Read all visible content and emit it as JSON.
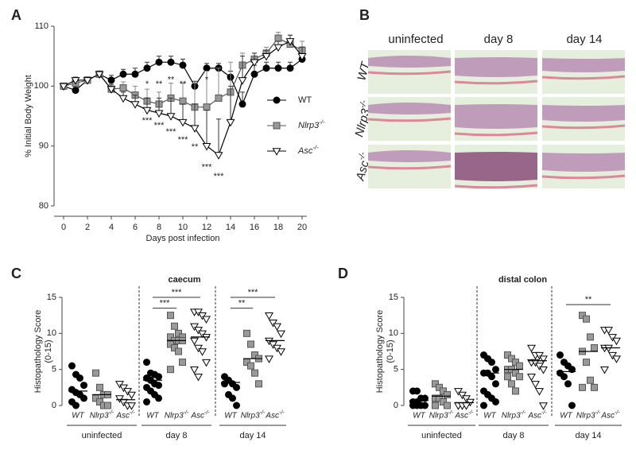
{
  "panel_labels": [
    "A",
    "B",
    "C",
    "D"
  ],
  "histology": {
    "columns": [
      "uninfected",
      "day 8",
      "day 14"
    ],
    "rows": [
      "WT",
      "Nlrp3-/-",
      "Asc-/-"
    ]
  },
  "chart_data": [
    {
      "type": "line",
      "xlabel": "Days post infection",
      "ylabel": "% Initial Body Weight",
      "x": [
        0,
        1,
        2,
        3,
        4,
        5,
        6,
        7,
        8,
        9,
        10,
        11,
        12,
        13,
        14,
        15,
        16,
        17,
        18,
        19,
        20
      ],
      "xlim": [
        0,
        20
      ],
      "ylim": [
        80,
        110
      ],
      "xticks": [
        0,
        2,
        4,
        6,
        8,
        10,
        12,
        14,
        16,
        18,
        20
      ],
      "yticks": [
        80,
        90,
        100,
        110
      ],
      "legend": "right",
      "series": [
        {
          "name": "WT",
          "marker": "circle",
          "color": "#000000",
          "edge_color": "#000000",
          "values": [
            100,
            99.3,
            101,
            102,
            101,
            102,
            102,
            103,
            104,
            104,
            103.5,
            100,
            103,
            103,
            101.5,
            97,
            102,
            103,
            103,
            103,
            104.5
          ],
          "errors": [
            0,
            0.5,
            0.5,
            0.5,
            0.8,
            0.8,
            1,
            1,
            1,
            1,
            1,
            0.8,
            0.8,
            0.8,
            1,
            2,
            1.5,
            1,
            1,
            1,
            1.2
          ]
        },
        {
          "name": "Nlrp3-/-",
          "marker": "square",
          "color": "#999999",
          "edge_color": "#555555",
          "values": [
            100,
            100.5,
            101,
            102,
            99.5,
            99.7,
            98.5,
            97.5,
            97,
            98,
            97.5,
            96.5,
            96.5,
            98,
            99,
            103.5,
            104.5,
            105.5,
            108,
            107,
            106
          ],
          "errors": [
            0,
            0.5,
            0.5,
            0.5,
            0.8,
            1,
            1.5,
            2,
            2,
            2.5,
            3,
            4,
            6,
            5,
            5,
            2,
            1,
            1,
            1,
            1.5,
            1.5
          ]
        },
        {
          "name": "Asc-/-",
          "marker": "triangle-down",
          "color": "#ffffff",
          "edge_color": "#000000",
          "values": [
            100,
            101,
            101,
            102,
            99.5,
            98,
            97,
            96,
            95.5,
            95,
            94,
            93,
            90,
            88.5,
            94,
            101,
            104,
            105,
            106.5,
            107.5,
            105
          ],
          "errors": [
            0,
            0.5,
            0.5,
            0.5,
            0.8,
            1,
            1.5,
            2,
            2.5,
            3,
            3,
            4,
            6,
            6,
            6,
            4,
            1.5,
            1,
            1,
            1,
            1.5
          ]
        }
      ],
      "annotations": [
        {
          "x": 7,
          "y": 100.3,
          "text": "*",
          "color": "#999999"
        },
        {
          "x": 8,
          "y": 100.3,
          "text": "**",
          "color": "#999999"
        },
        {
          "x": 9,
          "y": 101,
          "text": "**",
          "color": "#999999"
        },
        {
          "x": 10,
          "y": 100.3,
          "text": "**",
          "color": "#999999"
        },
        {
          "x": 12,
          "y": 101,
          "text": "*",
          "color": "#999999"
        },
        {
          "x": 7,
          "y": 94.2,
          "text": "***",
          "color": "#000000"
        },
        {
          "x": 8,
          "y": 93.4,
          "text": "***",
          "color": "#000000"
        },
        {
          "x": 9,
          "y": 92.3,
          "text": "***",
          "color": "#000000"
        },
        {
          "x": 10,
          "y": 91,
          "text": "***",
          "color": "#000000"
        },
        {
          "x": 11,
          "y": 89.8,
          "text": "**",
          "color": "#000000"
        },
        {
          "x": 12,
          "y": 86.4,
          "text": "***",
          "color": "#000000"
        },
        {
          "x": 13,
          "y": 84.9,
          "text": "***",
          "color": "#000000"
        }
      ]
    },
    {
      "type": "strip",
      "title": "caecum",
      "ylabel": [
        "Histopathology Score",
        "(0-15)"
      ],
      "ylim": [
        0,
        15
      ],
      "yticks": [
        0,
        5,
        10,
        15
      ],
      "groups": [
        "uninfected",
        "day 8",
        "day 14"
      ],
      "series": [
        {
          "name": "WT",
          "marker": "circle",
          "color": "#000000",
          "edge_color": "#000000",
          "values": [
            [
              5.5,
              4.3,
              3.8,
              2.8,
              2.2,
              1.8,
              1.5,
              1,
              0.5,
              0
            ],
            [
              6,
              4.5,
              4.3,
              4,
              3.8,
              3.5,
              3,
              2.8,
              2.5,
              2,
              1.5,
              1,
              0.5
            ],
            [
              4,
              3.5,
              3,
              2.5,
              3,
              1.5,
              1,
              0
            ]
          ],
          "means": [
            2,
            3.5,
            3.2
          ]
        },
        {
          "name": "Nlrp3-/-",
          "marker": "square",
          "color": "#999999",
          "edge_color": "#555555",
          "values": [
            [
              4.5,
              2.5,
              1.5,
              1.5,
              1,
              0.5,
              0,
              0
            ],
            [
              12.5,
              11,
              10,
              9.5,
              9.5,
              9,
              9,
              9,
              8.5,
              8,
              7.5,
              6,
              5
            ],
            [
              10,
              8.5,
              7,
              6.5,
              6,
              5.5,
              4.5,
              3
            ]
          ],
          "means": [
            1.5,
            9,
            6.5
          ]
        },
        {
          "name": "Asc-/-",
          "marker": "triangle-down",
          "color": "#ffffff",
          "edge_color": "#000000",
          "values": [
            [
              3,
              2.5,
              2,
              1.5,
              1,
              0.5,
              0,
              0
            ],
            [
              13,
              13,
              12.5,
              12,
              11,
              10.5,
              10,
              9.5,
              9,
              8,
              7.5,
              6,
              5,
              4
            ],
            [
              12.5,
              11.5,
              11,
              10,
              9,
              8.5,
              8,
              7.5,
              6.5
            ]
          ],
          "means": [
            0.8,
            9.5,
            9
          ]
        }
      ],
      "brackets": [
        {
          "group": 1,
          "from": 0,
          "to": 1,
          "y": 13.5,
          "text": "***"
        },
        {
          "group": 1,
          "from": 0,
          "to": 2,
          "y": 15,
          "text": "***"
        },
        {
          "group": 2,
          "from": 0,
          "to": 1,
          "y": 13.5,
          "text": "**"
        },
        {
          "group": 2,
          "from": 0,
          "to": 2,
          "y": 15,
          "text": "***"
        }
      ]
    },
    {
      "type": "strip",
      "title": "distal colon",
      "ylabel": [
        "Histopathology Score",
        "(0-15)"
      ],
      "ylim": [
        0,
        15
      ],
      "yticks": [
        0,
        5,
        10,
        15
      ],
      "groups": [
        "uninfected",
        "day 8",
        "day 14"
      ],
      "series": [
        {
          "name": "WT",
          "marker": "circle",
          "color": "#000000",
          "edge_color": "#000000",
          "values": [
            [
              2,
              2,
              1,
              1,
              0.5,
              0.5,
              0,
              0,
              0,
              0
            ],
            [
              7,
              6.5,
              6,
              5,
              4.5,
              4.5,
              4,
              3,
              2,
              1.5,
              1,
              0.5,
              0
            ],
            [
              7,
              6,
              5.5,
              5,
              4.5,
              4,
              3,
              0
            ]
          ],
          "means": [
            0.7,
            4.5,
            4.7
          ]
        },
        {
          "name": "Nlrp3-/-",
          "marker": "square",
          "color": "#999999",
          "edge_color": "#555555",
          "values": [
            [
              3,
              2.5,
              2,
              1.5,
              1,
              1,
              0.5,
              0,
              0
            ],
            [
              7,
              6.5,
              6,
              5.5,
              5,
              5,
              4.5,
              4,
              4,
              3,
              2
            ],
            [
              12.5,
              12,
              9.5,
              8,
              7.5,
              6,
              3.5,
              2.5,
              2.5
            ]
          ],
          "means": [
            1.3,
            5,
            7.5
          ]
        },
        {
          "name": "Asc-/-",
          "marker": "triangle-down",
          "color": "#ffffff",
          "edge_color": "#000000",
          "values": [
            [
              2,
              1.5,
              1,
              0.5,
              0,
              0,
              0
            ],
            [
              8,
              7,
              7,
              6.5,
              6,
              6,
              5.5,
              5,
              4,
              3,
              2,
              0
            ],
            [
              10.5,
              10.5,
              9.5,
              9,
              8,
              8,
              7,
              6.5,
              5
            ]
          ],
          "means": [
            0.4,
            6.2,
            8
          ]
        }
      ],
      "brackets": [
        {
          "group": 2,
          "from": 0,
          "to": 2,
          "y": 14,
          "text": "**"
        }
      ]
    }
  ]
}
